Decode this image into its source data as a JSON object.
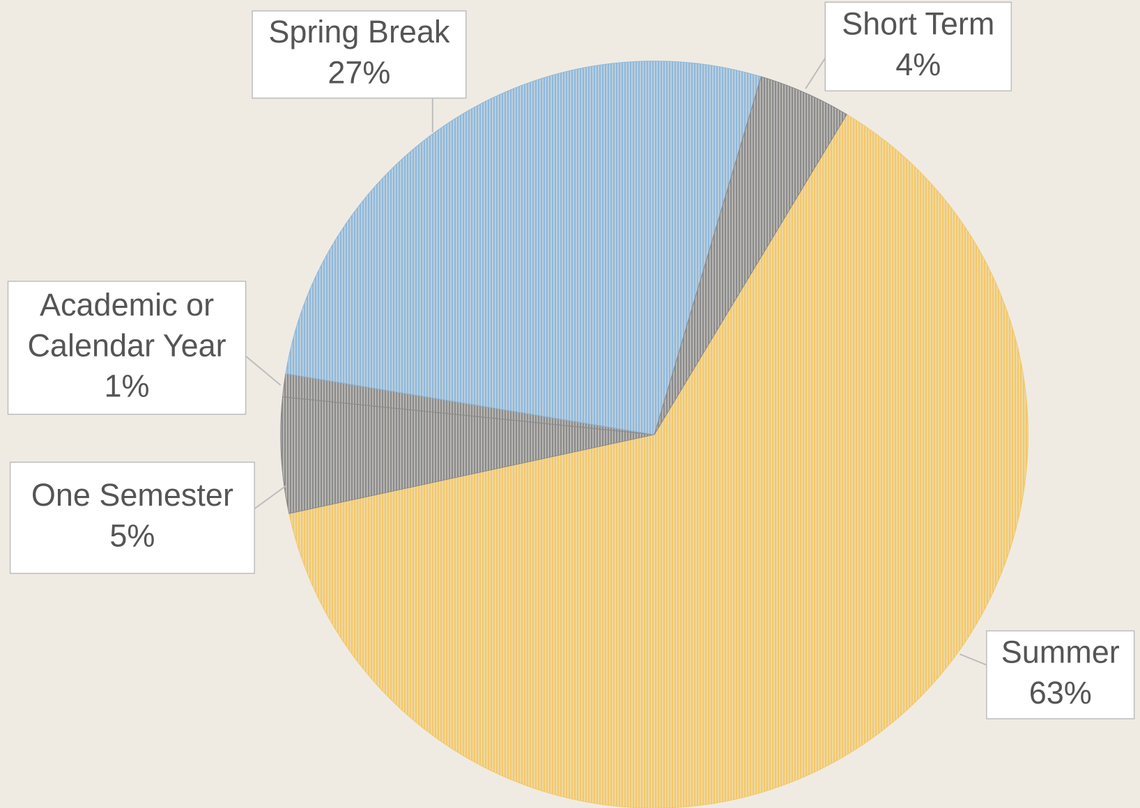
{
  "chart_data": {
    "type": "pie",
    "categories": [
      "Summer",
      "One Semester",
      "Academic or Calendar Year",
      "Spring Break",
      "Short Term"
    ],
    "values": [
      63,
      5,
      1,
      27,
      4
    ],
    "value_labels": [
      "63%",
      "5%",
      "1%",
      "27%",
      "4%"
    ],
    "colors": [
      "#f2c86a",
      "#8a8a8a",
      "#8a8a8a",
      "#8fb8da",
      "#8a8a8a"
    ]
  }
}
